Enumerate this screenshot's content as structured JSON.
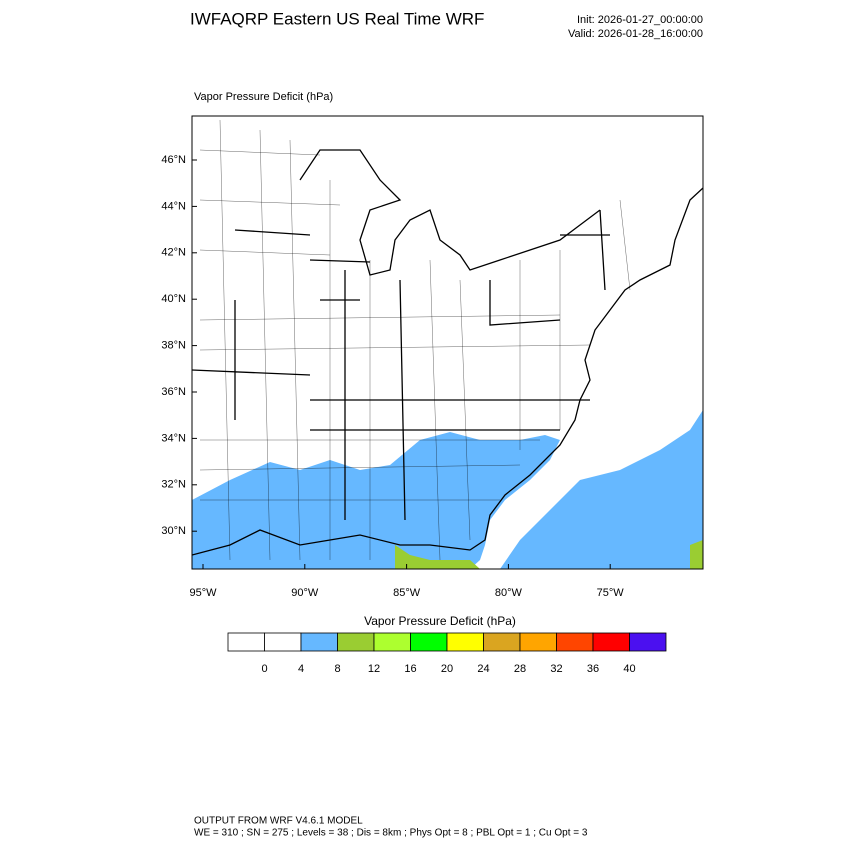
{
  "header": {
    "title": "IWFAQRP Eastern US Real Time WRF",
    "init": "Init: 2026-01-27_00:00:00",
    "valid": "Valid: 2026-01-28_16:00:00"
  },
  "map": {
    "title": "Vapor Pressure Deficit   (hPa)",
    "lat_labels": [
      "46°N",
      "44°N",
      "42°N",
      "40°N",
      "38°N",
      "36°N",
      "34°N",
      "32°N",
      "30°N"
    ],
    "lon_labels": [
      "95°W",
      "90°W",
      "85°W",
      "80°W",
      "75°W"
    ]
  },
  "colorbar": {
    "title": "Vapor Pressure Deficit  (hPa)",
    "ticks": [
      0,
      4,
      8,
      12,
      16,
      20,
      24,
      28,
      32,
      36,
      40
    ],
    "colors": [
      "#ffffff",
      "#ffffff",
      "#66b8ff",
      "#9acd32",
      "#adff2f",
      "#00ff00",
      "#ffff00",
      "#daa520",
      "#ffa500",
      "#ff4500",
      "#ff0000",
      "#4b10f0"
    ]
  },
  "footer": {
    "line1": "OUTPUT FROM WRF V4.6.1 MODEL",
    "line2": "WE = 310 ; SN = 275 ; Levels = 38 ; Dis = 8km ; Phys Opt = 8 ; PBL Opt = 1 ; Cu Opt = 3"
  }
}
